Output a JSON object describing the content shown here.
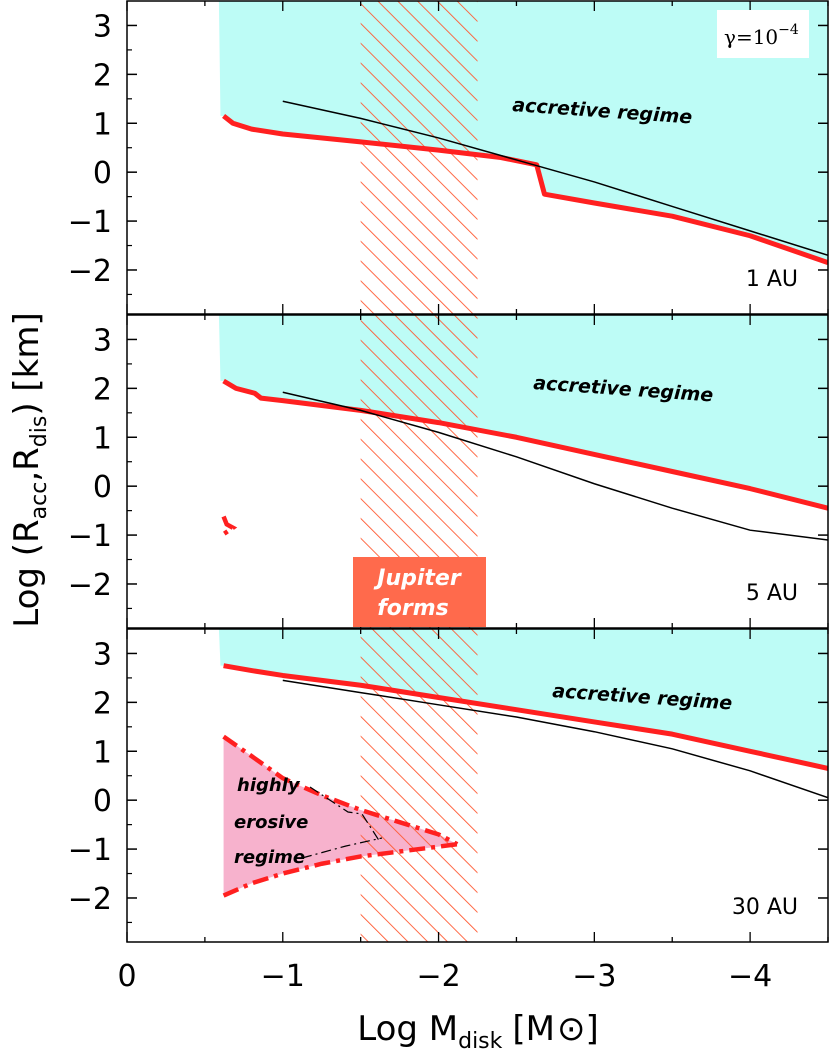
{
  "figure": {
    "ylabel_main": "Log (R",
    "ylabel_sub1": "acc",
    "ylabel_mid": ",R",
    "ylabel_sub2": "dis",
    "ylabel_end": ") [km]",
    "xlabel_main": "Log M",
    "xlabel_sub": "disk",
    "xlabel_unit": "[M",
    "xlabel_unit_end": "]",
    "gamma_base": "γ=10",
    "gamma_exp": "−4",
    "jupiter_line1": "Jupiter",
    "jupiter_line2": "forms",
    "erosive_line1": "highly",
    "erosive_line2": "erosive",
    "erosive_line3": "regime",
    "colors": {
      "red": "#ff2020",
      "cyan": "#bdfcf6",
      "pink": "#f7b2cd",
      "hatch": "#ff5a33",
      "callout_bg": "#ff6a4c"
    }
  },
  "chart_data": [
    {
      "type": "line",
      "panel_label": "1  AU",
      "regime_label": "accretive regime",
      "xlabel": "",
      "ylabel": "",
      "xlim": [
        0,
        -4.5
      ],
      "ylim": [
        -2.9,
        3.5
      ],
      "x_ticks": [
        "0",
        "−1",
        "−2",
        "−3",
        "−4"
      ],
      "y_ticks": [
        "−2",
        "−1",
        "0",
        "1",
        "2",
        "3"
      ],
      "hatch_band_x": [
        -1.5,
        -2.25
      ],
      "series": [
        {
          "style": "thick-red",
          "x": [
            -0.62,
            -0.68,
            -0.8,
            -1.0,
            -1.5,
            -2.0,
            -2.4,
            -2.63,
            -2.68,
            -3.0,
            -3.5,
            -4.0,
            -4.5
          ],
          "y": [
            1.15,
            1.0,
            0.88,
            0.78,
            0.62,
            0.45,
            0.3,
            0.15,
            -0.45,
            -0.63,
            -0.9,
            -1.3,
            -1.85
          ]
        },
        {
          "style": "thin-black",
          "x": [
            -1.0,
            -1.5,
            -2.0,
            -2.5,
            -3.0,
            -3.5,
            -4.0,
            -4.5
          ],
          "y": [
            1.45,
            1.1,
            0.7,
            0.25,
            -0.2,
            -0.7,
            -1.2,
            -1.7
          ]
        }
      ]
    },
    {
      "type": "line",
      "panel_label": "5  AU",
      "regime_label": "accretive regime",
      "xlabel": "",
      "ylabel": "",
      "xlim": [
        0,
        -4.5
      ],
      "ylim": [
        -2.9,
        3.5
      ],
      "x_ticks": [
        "0",
        "−1",
        "−2",
        "−3",
        "−4"
      ],
      "y_ticks": [
        "−2",
        "−1",
        "0",
        "1",
        "2",
        "3"
      ],
      "hatch_band_x": [
        -1.5,
        -2.25
      ],
      "series": [
        {
          "style": "thick-red",
          "x": [
            -0.62,
            -0.7,
            -0.82,
            -0.86,
            -1.0,
            -1.5,
            -2.0,
            -2.5,
            -3.0,
            -3.5,
            -4.0,
            -4.5
          ],
          "y": [
            2.15,
            2.0,
            1.9,
            1.8,
            1.75,
            1.55,
            1.3,
            1.0,
            0.65,
            0.3,
            -0.05,
            -0.45
          ]
        },
        {
          "style": "thin-black",
          "x": [
            -1.0,
            -1.5,
            -2.0,
            -2.5,
            -3.0,
            -3.5,
            -4.0,
            -4.5
          ],
          "y": [
            1.92,
            1.55,
            1.1,
            0.6,
            0.05,
            -0.45,
            -0.9,
            -1.1
          ]
        },
        {
          "style": "dashdot-red",
          "x": [
            -0.62,
            -0.64,
            -0.68,
            -0.62
          ],
          "y": [
            -0.62,
            -0.78,
            -0.85,
            -0.98
          ]
        }
      ]
    },
    {
      "type": "line",
      "panel_label": "30  AU",
      "regime_label": "accretive regime",
      "xlabel": "",
      "ylabel": "",
      "xlim": [
        0,
        -4.5
      ],
      "ylim": [
        -2.9,
        3.5
      ],
      "x_ticks": [
        "0",
        "−1",
        "−2",
        "−3",
        "−4"
      ],
      "y_ticks": [
        "−2",
        "−1",
        "0",
        "1",
        "2",
        "3"
      ],
      "hatch_band_x": [
        -1.5,
        -2.25
      ],
      "series": [
        {
          "style": "thick-red",
          "x": [
            -0.62,
            -0.8,
            -1.0,
            -1.5,
            -2.0,
            -2.5,
            -3.0,
            -3.5,
            -4.0,
            -4.5
          ],
          "y": [
            2.75,
            2.65,
            2.55,
            2.35,
            2.1,
            1.85,
            1.6,
            1.35,
            1.0,
            0.65
          ]
        },
        {
          "style": "thin-black",
          "x": [
            -1.0,
            -1.5,
            -2.0,
            -2.5,
            -3.0,
            -3.5,
            -4.0,
            -4.5
          ],
          "y": [
            2.45,
            2.2,
            1.95,
            1.7,
            1.4,
            1.05,
            0.6,
            0.05
          ]
        },
        {
          "style": "dashdot-red-upper",
          "x": [
            -0.62,
            -0.8,
            -1.0,
            -1.25,
            -1.5,
            -1.75,
            -2.0,
            -2.12
          ],
          "y": [
            1.3,
            0.9,
            0.45,
            0.1,
            -0.2,
            -0.45,
            -0.7,
            -0.9
          ]
        },
        {
          "style": "dashdot-red-lower",
          "x": [
            -0.62,
            -0.8,
            -1.0,
            -1.25,
            -1.5,
            -1.75,
            -2.0,
            -2.12
          ],
          "y": [
            -1.95,
            -1.7,
            -1.5,
            -1.3,
            -1.15,
            -1.05,
            -0.95,
            -0.9
          ]
        }
      ]
    }
  ]
}
